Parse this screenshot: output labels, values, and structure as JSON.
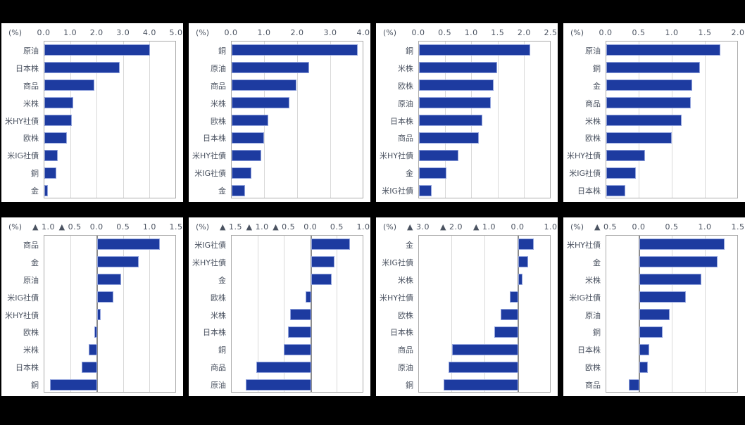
{
  "unit_label": "(%)",
  "colors": {
    "page_bg": "#000000",
    "panel_bg": "#ffffff",
    "bar": "#1d3ba0",
    "bar_border": "#93a4dd",
    "text": "#4a5260",
    "gridline": "#d9d9d9",
    "plot_border": "#ababab",
    "zero_line": "#8c8c8c"
  },
  "chart_data": [
    {
      "type": "bar",
      "orientation": "horizontal",
      "unit": "(%)",
      "xlim": [
        0,
        5.0
      ],
      "xticks": [
        0.0,
        1.0,
        2.0,
        3.0,
        4.0,
        5.0
      ],
      "categories": [
        "原油",
        "日本株",
        "商品",
        "米株",
        "米HY社債",
        "欧株",
        "米IG社債",
        "銅",
        "金"
      ],
      "values": [
        4.0,
        2.85,
        1.9,
        1.1,
        1.05,
        0.85,
        0.5,
        0.45,
        0.12
      ]
    },
    {
      "type": "bar",
      "orientation": "horizontal",
      "unit": "(%)",
      "xlim": [
        0,
        4.0
      ],
      "xticks": [
        0.0,
        1.0,
        2.0,
        3.0,
        4.0
      ],
      "categories": [
        "銅",
        "原油",
        "商品",
        "米株",
        "欧株",
        "日本株",
        "米HY社債",
        "米IG社債",
        "金"
      ],
      "values": [
        3.8,
        2.35,
        1.95,
        1.75,
        1.1,
        0.97,
        0.9,
        0.6,
        0.4
      ]
    },
    {
      "type": "bar",
      "orientation": "horizontal",
      "unit": "(%)",
      "xlim": [
        0,
        2.5
      ],
      "xticks": [
        0.0,
        0.5,
        1.0,
        1.5,
        2.0,
        2.5
      ],
      "categories": [
        "銅",
        "米株",
        "欧株",
        "原油",
        "日本株",
        "商品",
        "米HY社債",
        "金",
        "米IG社債"
      ],
      "values": [
        2.1,
        1.47,
        1.41,
        1.36,
        1.2,
        1.13,
        0.74,
        0.52,
        0.24
      ]
    },
    {
      "type": "bar",
      "orientation": "horizontal",
      "unit": "(%)",
      "xlim": [
        0,
        2.0
      ],
      "xticks": [
        0.0,
        0.5,
        1.0,
        1.5,
        2.0
      ],
      "categories": [
        "原油",
        "銅",
        "金",
        "商品",
        "米株",
        "欧株",
        "米HY社債",
        "米IG社債",
        "日本株"
      ],
      "values": [
        1.72,
        1.42,
        1.3,
        1.28,
        1.14,
        0.99,
        0.58,
        0.45,
        0.29
      ]
    },
    {
      "type": "bar",
      "orientation": "horizontal",
      "unit": "(%)",
      "xlim": [
        -1.0,
        1.5
      ],
      "xticks": [
        -1.0,
        -0.5,
        0.0,
        0.5,
        1.0,
        1.5
      ],
      "categories": [
        "商品",
        "金",
        "原油",
        "米IG社債",
        "米HY社債",
        "欧株",
        "米株",
        "日本株",
        "銅"
      ],
      "values": [
        1.18,
        0.78,
        0.45,
        0.31,
        0.06,
        -0.06,
        -0.16,
        -0.3,
        -0.89
      ]
    },
    {
      "type": "bar",
      "orientation": "horizontal",
      "unit": "(%)",
      "xlim": [
        -1.5,
        1.0
      ],
      "xticks": [
        -1.5,
        -1.0,
        -0.5,
        0.0,
        0.5,
        1.0
      ],
      "categories": [
        "米IG社債",
        "米HY社債",
        "金",
        "欧株",
        "米株",
        "日本株",
        "銅",
        "商品",
        "原油"
      ],
      "values": [
        0.74,
        0.44,
        0.39,
        -0.1,
        -0.4,
        -0.44,
        -0.51,
        -1.04,
        -1.24
      ]
    },
    {
      "type": "bar",
      "orientation": "horizontal",
      "unit": "(%)",
      "xlim": [
        -3.0,
        1.0
      ],
      "xticks": [
        -3.0,
        -2.0,
        -1.0,
        0.0,
        1.0
      ],
      "categories": [
        "金",
        "米IG社債",
        "米株",
        "米HY社債",
        "欧株",
        "日本株",
        "商品",
        "原油",
        "銅"
      ],
      "values": [
        0.46,
        0.3,
        0.12,
        -0.25,
        -0.54,
        -0.72,
        -2.0,
        -2.1,
        -2.25
      ]
    },
    {
      "type": "bar",
      "orientation": "horizontal",
      "unit": "(%)",
      "xlim": [
        -0.5,
        1.5
      ],
      "xticks": [
        -0.5,
        0.0,
        0.5,
        1.0,
        1.5
      ],
      "categories": [
        "米HY社債",
        "金",
        "米株",
        "米IG社債",
        "原油",
        "銅",
        "日本株",
        "欧株",
        "商品"
      ],
      "values": [
        1.29,
        1.18,
        0.94,
        0.7,
        0.46,
        0.35,
        0.15,
        0.13,
        -0.16
      ]
    }
  ],
  "negative_tick_prefix": "▲ "
}
